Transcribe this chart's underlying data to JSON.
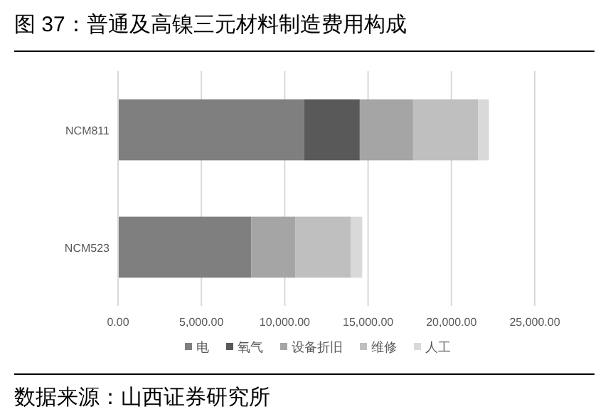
{
  "chart_data": {
    "type": "bar",
    "orientation": "horizontal",
    "stacked": true,
    "title": "图 37：普通及高镍三元材料制造费用构成",
    "categories": [
      "NCM811",
      "NCM523"
    ],
    "series": [
      {
        "name": "电",
        "color": "#7f7f7f",
        "values": [
          11150,
          8000
        ]
      },
      {
        "name": "氧气",
        "color": "#595959",
        "values": [
          3350,
          0
        ]
      },
      {
        "name": "设备折旧",
        "color": "#a5a5a5",
        "values": [
          3200,
          2650
        ]
      },
      {
        "name": "维修",
        "color": "#bfbfbf",
        "values": [
          3900,
          3300
        ]
      },
      {
        "name": "人工",
        "color": "#d9d9d9",
        "values": [
          650,
          700
        ]
      }
    ],
    "xlim": [
      0,
      25000
    ],
    "xticks": [
      {
        "value": 0,
        "label": "0.00"
      },
      {
        "value": 5000,
        "label": "5,000.00"
      },
      {
        "value": 10000,
        "label": "10,000.00"
      },
      {
        "value": 15000,
        "label": "15,000.00"
      },
      {
        "value": 20000,
        "label": "20,000.00"
      },
      {
        "value": 25000,
        "label": "25,000.00"
      }
    ],
    "grid": "x",
    "legend": "bottom",
    "annotations": [
      "数据来源：山西证券研究所"
    ]
  }
}
